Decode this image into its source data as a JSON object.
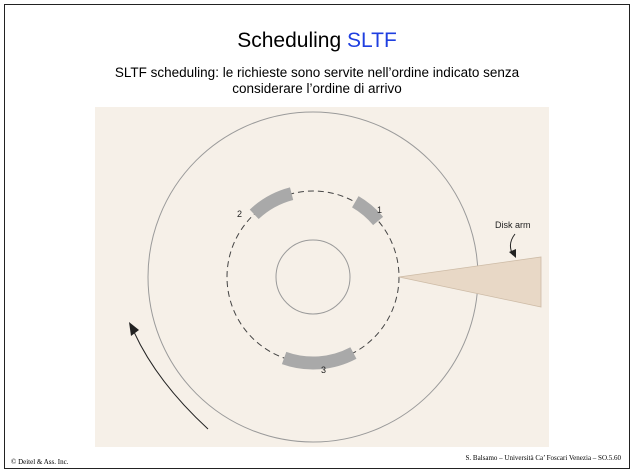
{
  "slide": {
    "title_main": "Scheduling",
    "title_accent": "SLTF",
    "subtitle_line1": "SLTF scheduling: le richieste sono servite nell’ordine indicato senza",
    "subtitle_line2": "considerare l’ordine di arrivo"
  },
  "diagram": {
    "request_labels": [
      "2",
      "1",
      "3"
    ],
    "disk_arm_label": "Disk arm"
  },
  "footer": {
    "left": "© Deitel & Ass. Inc.",
    "right": "S. Balsamo – Università Ca’ Foscari Venezia – SO.5.60"
  },
  "colors": {
    "accent": "#1f3fe0",
    "figure_bg": "#f6f0e8",
    "sector": "#a9a9a9",
    "arm": "#e8d8c6"
  }
}
